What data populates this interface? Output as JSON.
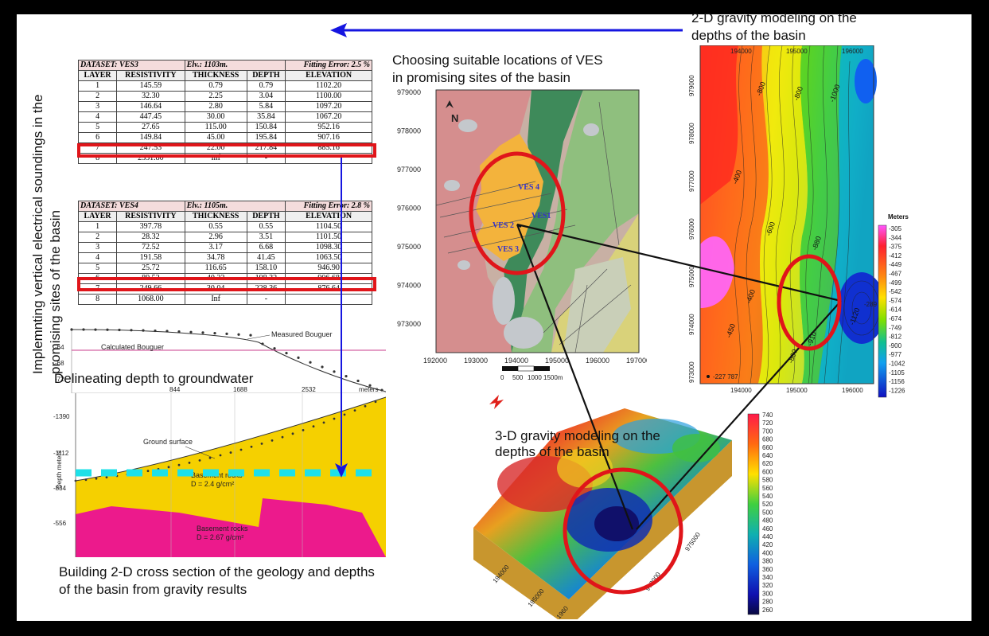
{
  "captions": {
    "vertical_line1": "Implemnting vertical electrical soundings in the",
    "vertical_line2": "promising sites of the basin",
    "gravity2d_line1": "2-D gravity modeling on the",
    "gravity2d_line2": "depths of the basin",
    "ves_line1": "Choosing suitable locations of VES",
    "ves_line2": "in promising sites of the basin",
    "groundwater": "Delineating depth to groundwater",
    "gravity3d_line1": "3-D gravity modeling on the",
    "gravity3d_line2": "depths of the basin",
    "cross_line1": "Building 2-D cross section of the geology and depths",
    "cross_line2": "of the basin from gravity results"
  },
  "ves3": {
    "dataset": "DATASET: VES3",
    "elevation": "Elv.: 1103m.",
    "fitting": "Fitting Error: 2.5 %",
    "columns": [
      "LAYER",
      "RESISTIVITY",
      "THICKNESS",
      "DEPTH",
      "ELEVATION"
    ],
    "rows": [
      [
        "1",
        "145.59",
        "0.79",
        "0.79",
        "1102.20"
      ],
      [
        "2",
        "32.30",
        "2.25",
        "3.04",
        "1100.00"
      ],
      [
        "3",
        "146.64",
        "2.80",
        "5.84",
        "1097.20"
      ],
      [
        "4",
        "447.45",
        "30.00",
        "35.84",
        "1067.20"
      ],
      [
        "5",
        "27.65",
        "115.00",
        "150.84",
        "952.16"
      ],
      [
        "6",
        "149.84",
        "45.00",
        "195.84",
        "907.16"
      ],
      [
        "7",
        "247.53",
        "22.00",
        "217.84",
        "885.16"
      ],
      [
        "8",
        "2331.80",
        "Inf",
        "-",
        ""
      ]
    ]
  },
  "ves4": {
    "dataset": "DATASET: VES4",
    "elevation": "Elv.: 1105m.",
    "fitting": "Fitting Error: 2.8 %",
    "columns": [
      "LAYER",
      "RESISTIVITY",
      "THICKNESS",
      "DEPTH",
      "ELEVATION"
    ],
    "rows": [
      [
        "1",
        "397.78",
        "0.55",
        "0.55",
        "1104.50"
      ],
      [
        "2",
        "28.32",
        "2.96",
        "3.51",
        "1101.50"
      ],
      [
        "3",
        "72.52",
        "3.17",
        "6.68",
        "1098.30"
      ],
      [
        "4",
        "191.58",
        "34.78",
        "41.45",
        "1063.50"
      ],
      [
        "5",
        "25.72",
        "116.65",
        "158.10",
        "946.90"
      ],
      [
        "6",
        "89.52",
        "40.22",
        "198.32",
        "906.68"
      ],
      [
        "7",
        "249.66",
        "30.04",
        "228.36",
        "876.64"
      ],
      [
        "8",
        "1068.00",
        "Inf",
        "-",
        ""
      ]
    ]
  },
  "bouguer": {
    "measured": "Measured Bouguer",
    "calculated": "Calculated Bouguer",
    "ticks_y": [
      "-64",
      "-68",
      "-72"
    ],
    "ticks_x": [
      "844",
      "1688",
      "2532"
    ],
    "x_unit": "meters"
  },
  "cross_section": {
    "ground": "Ground surface",
    "sediment": "Basement rocks",
    "sediment_density": "D = 2.4 g/cm²",
    "basement": "Basement rocks",
    "basement_density": "D = 2.67 g/cm²",
    "depth_label": "Depth meters",
    "ticks_y": [
      "-1390",
      "-1112",
      "-834",
      "-556"
    ]
  },
  "geomap": {
    "y_ticks": [
      "979000",
      "978000",
      "977000",
      "976000",
      "975000",
      "974000",
      "973000"
    ],
    "x_ticks": [
      "192000",
      "193000",
      "194000",
      "195000",
      "196000",
      "197000"
    ],
    "scale_labels": [
      "0",
      "500",
      "1000",
      "1500m"
    ],
    "ves_labels": [
      "VES 4",
      "VES1",
      "VES 2",
      "VES 3"
    ],
    "north": "N"
  },
  "gravity2d": {
    "x_ticks_top": [
      "194000",
      "195000",
      "196000"
    ],
    "x_ticks_bottom": [
      "194000",
      "195000",
      "196000"
    ],
    "y_ticks": [
      "979000",
      "978000",
      "977000",
      "976000",
      "975000",
      "974000",
      "973000"
    ],
    "contours": [
      "-800",
      "-800",
      "-1000",
      "-400",
      "-600",
      "-880",
      "-400",
      "-800",
      "-450",
      "-1120",
      "-910"
    ],
    "legend_title": "Meters",
    "legend_values": [
      "-305",
      "-344",
      "-375",
      "-412",
      "-449",
      "-467",
      "-499",
      "-542",
      "-574",
      "-614",
      "-674",
      "-749",
      "-812",
      "-900",
      "-977",
      "-1042",
      "-1105",
      "-1156",
      "-1226"
    ],
    "station": "-227 787",
    "station_right": "-289",
    "colors": [
      "#ff66ff",
      "#ff1d5a",
      "#ff2020",
      "#ff5a10",
      "#ff8a10",
      "#ffb400",
      "#ffe000",
      "#e8f000",
      "#b0f000",
      "#70e000",
      "#20d040",
      "#10c090",
      "#10c0d8",
      "#10a0f0",
      "#1070f0",
      "#1040e0",
      "#1010d0",
      "#1010a0"
    ]
  },
  "gravity3d": {
    "legend_values": [
      "740",
      "720",
      "700",
      "680",
      "660",
      "640",
      "620",
      "600",
      "580",
      "560",
      "540",
      "520",
      "500",
      "480",
      "460",
      "440",
      "420",
      "400",
      "380",
      "360",
      "340",
      "320",
      "300",
      "280",
      "260"
    ],
    "axis_labels": [
      "194000",
      "195000",
      "1960",
      "973000",
      "975000"
    ],
    "north": "N"
  }
}
